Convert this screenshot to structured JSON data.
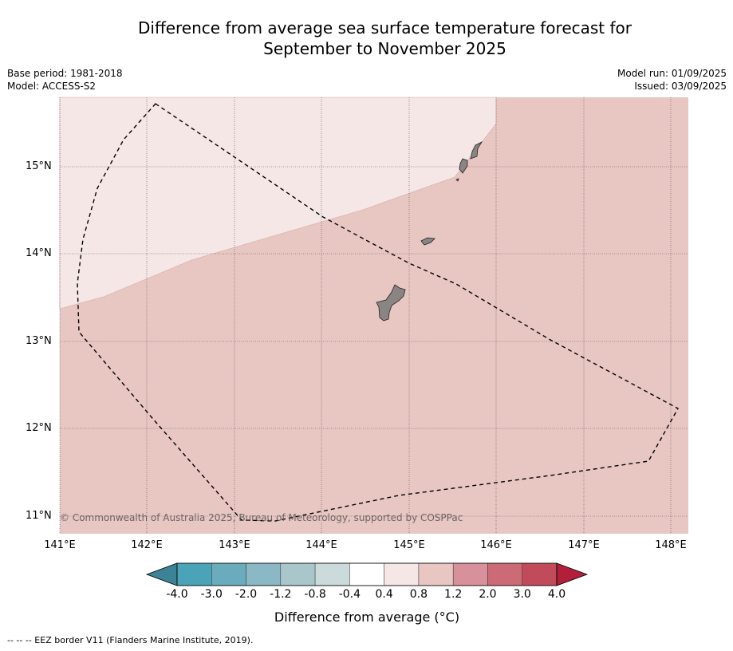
{
  "title_line1": "Difference from average sea surface temperature forecast for",
  "title_line2": "September to November 2025",
  "meta_left": {
    "line1": "Base period: 1981-2018",
    "line2": "Model: ACCESS-S2"
  },
  "meta_right": {
    "line1": "Model run: 01/09/2025",
    "line2": "Issued: 03/09/2025"
  },
  "map": {
    "lon_labels": [
      "141°E",
      "142°E",
      "143°E",
      "144°E",
      "145°E",
      "146°E",
      "147°E",
      "148°E"
    ],
    "lat_labels": [
      "15°N",
      "14°N",
      "13°N",
      "12°N",
      "11°N"
    ],
    "copyright": "© Commonwealth of Australia 2025, Bureau of Meteorology, supported by COSPPac",
    "regions": [
      {
        "name": "0.4 to 0.8",
        "color": "#f4e7e6"
      },
      {
        "name": "0.8 to 1.2",
        "color": "#e8c6c2"
      }
    ],
    "land_color": "#8a8583",
    "eez_color": "#000000"
  },
  "colorbar": {
    "ticks": [
      "-4.0",
      "-3.0",
      "-2.0",
      "-1.2",
      "-0.8",
      "-0.4",
      "0.4",
      "0.8",
      "1.2",
      "2.0",
      "3.0",
      "4.0"
    ],
    "colors": [
      "#4aa3b6",
      "#6aacbd",
      "#8ab8c4",
      "#a9c6cb",
      "#cbdadb",
      "#ffffff",
      "#f4e7e6",
      "#e8c6c2",
      "#d8919a",
      "#cc6a76",
      "#c24b5b"
    ],
    "under_color": "#3c8396",
    "over_color": "#b31e3b",
    "label": "Difference from average (°C)"
  },
  "footnote": "-- -- -- EEZ border V11 (Flanders Marine Institute, 2019)."
}
